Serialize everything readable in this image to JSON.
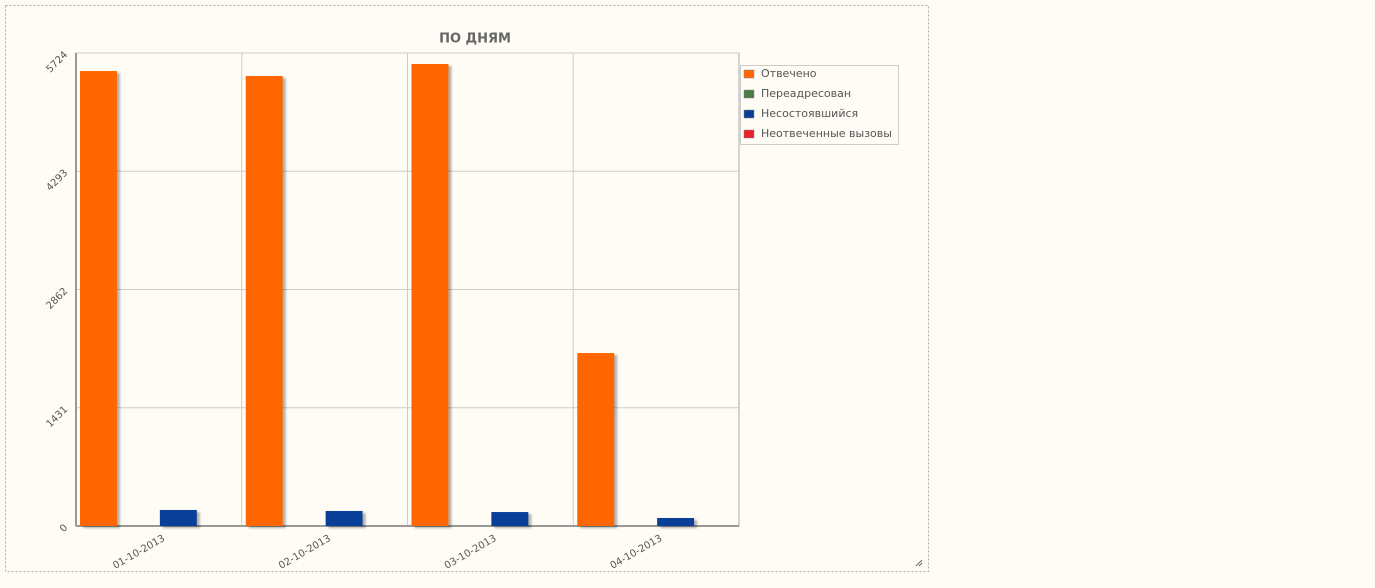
{
  "chart_data": {
    "type": "bar",
    "title": "ПО ДНЯМ",
    "categories": [
      "01-10-2013",
      "02-10-2013",
      "03-10-2013",
      "04-10-2013"
    ],
    "series": [
      {
        "name": "Отвечено",
        "color": "#ff6600",
        "values": [
          5506,
          5446,
          5591,
          2093
        ]
      },
      {
        "name": "Переадресован",
        "color": "#4a7c45",
        "values": [
          0,
          0,
          0,
          0
        ]
      },
      {
        "name": "Несостоявшийся",
        "color": "#0a3f99",
        "values": [
          194,
          182,
          169,
          97
        ]
      },
      {
        "name": "Неотвеченные вызовы",
        "color": "#e8202a",
        "values": [
          0,
          0,
          0,
          0
        ]
      }
    ],
    "ylim": [
      0,
      5724
    ],
    "yticks": [
      0,
      1431,
      2862,
      4293,
      5724
    ],
    "grid": true,
    "legend": "right"
  }
}
